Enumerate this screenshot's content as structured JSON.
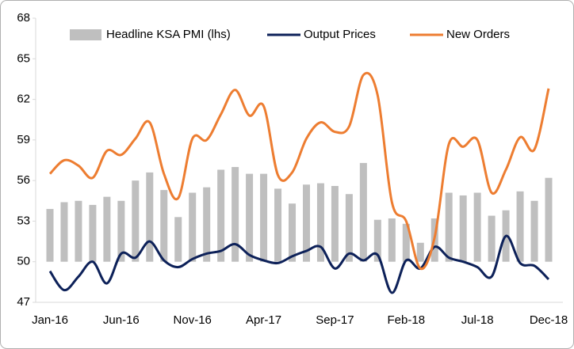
{
  "chart_data": {
    "type": "combo",
    "categories": [
      "Jan-16",
      null,
      null,
      null,
      null,
      "Jun-16",
      null,
      null,
      null,
      null,
      "Nov-16",
      null,
      null,
      null,
      null,
      "Apr-17",
      null,
      null,
      null,
      null,
      "Sep-17",
      null,
      null,
      null,
      null,
      "Feb-18",
      null,
      null,
      null,
      null,
      "Jul-18",
      null,
      null,
      null,
      null,
      "Dec-18"
    ],
    "ylim": [
      47,
      68
    ],
    "yticks": [
      47,
      50,
      53,
      56,
      59,
      62,
      65,
      68
    ],
    "legend": "top",
    "series": [
      {
        "name": "Headline KSA PMI (lhs)",
        "type": "bar",
        "color": "#bfbfbf",
        "bar_base": 50,
        "values": [
          53.9,
          54.4,
          54.5,
          54.2,
          54.8,
          54.5,
          56.0,
          56.6,
          55.3,
          53.3,
          55.1,
          55.5,
          56.8,
          57.0,
          56.5,
          56.5,
          55.4,
          54.3,
          55.7,
          55.8,
          55.6,
          55.0,
          57.3,
          53.1,
          53.2,
          52.8,
          51.4,
          53.2,
          55.1,
          54.9,
          55.1,
          53.4,
          53.8,
          55.2,
          54.5,
          56.2
        ]
      },
      {
        "name": "Output Prices",
        "type": "line",
        "color": "#0d2159",
        "values": [
          49.3,
          47.9,
          48.9,
          50.0,
          48.4,
          50.6,
          50.3,
          51.5,
          50.1,
          49.6,
          50.2,
          50.6,
          50.8,
          51.3,
          50.5,
          50.1,
          49.9,
          50.4,
          50.8,
          51.1,
          49.5,
          50.6,
          50.1,
          50.5,
          47.7,
          50.1,
          49.5,
          51.1,
          50.3,
          50.0,
          49.6,
          48.9,
          51.9,
          49.9,
          49.7,
          48.7
        ]
      },
      {
        "name": "New Orders",
        "type": "line",
        "color": "#ed7d31",
        "values": [
          56.5,
          57.5,
          57.1,
          56.2,
          58.2,
          57.9,
          59.1,
          60.3,
          56.5,
          54.7,
          59.1,
          59.0,
          60.9,
          62.7,
          60.8,
          61.5,
          56.4,
          56.6,
          59.1,
          60.3,
          59.6,
          60.0,
          63.8,
          62.3,
          54.4,
          53.0,
          49.5,
          51.8,
          58.7,
          58.5,
          59.0,
          55.1,
          56.8,
          59.2,
          58.3,
          62.8
        ]
      }
    ]
  }
}
